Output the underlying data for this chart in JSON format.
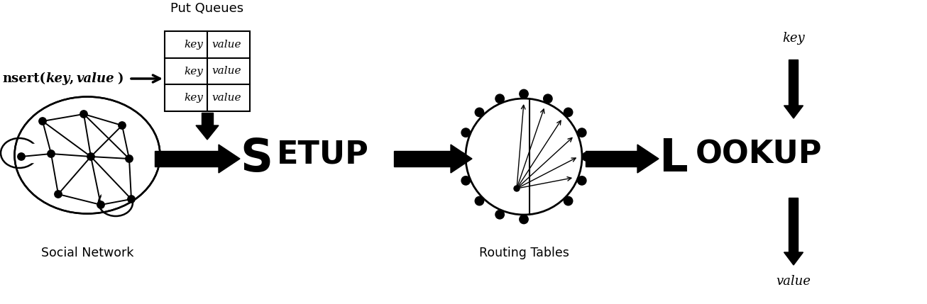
{
  "bg_color": "#ffffff",
  "fig_width": 13.06,
  "fig_height": 4.29,
  "dpi": 100,
  "insert_text_normal": "nsert(",
  "insert_text_key": "key",
  "insert_text_comma": ",",
  "insert_text_value": "value",
  "insert_text_close": ")",
  "setup_letter_S": "S",
  "setup_letters_rest": "ETUP",
  "lookup_letter_L": "L",
  "lookup_letters_rest": "OOKUP",
  "put_queues_text": "Put Queues",
  "social_network_text": "Social Network",
  "routing_tables_text": "Routing Tables",
  "key_top_text": "key",
  "value_bottom_text": "value",
  "table_rows": [
    [
      "key",
      "value"
    ],
    [
      "key",
      "value"
    ],
    [
      "key",
      "value"
    ]
  ],
  "xlim": [
    0,
    13.06
  ],
  "ylim": [
    0,
    4.29
  ]
}
